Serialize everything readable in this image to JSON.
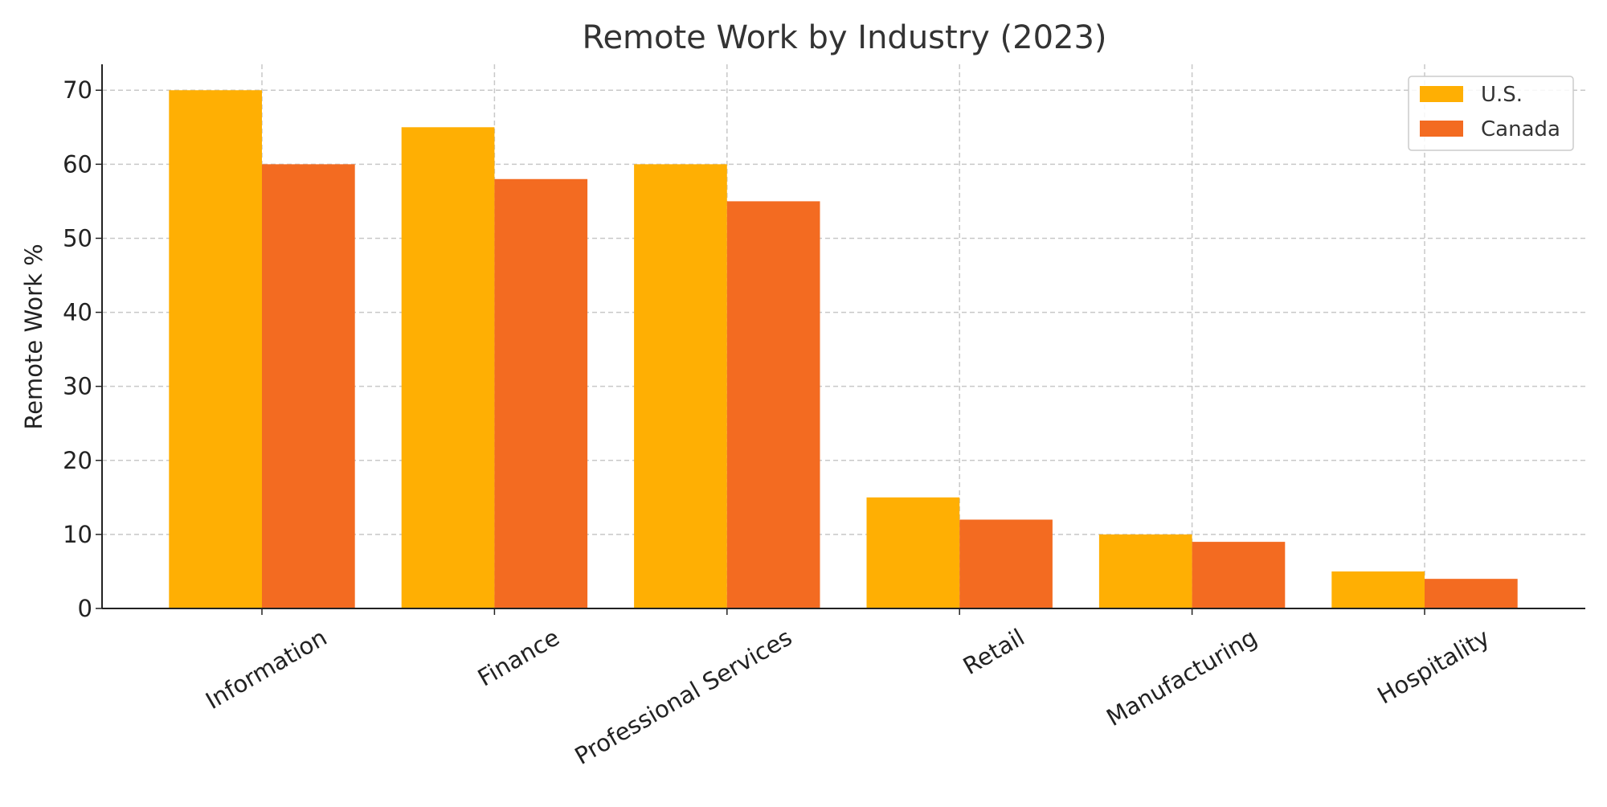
{
  "chart_data": {
    "type": "bar",
    "title": "Remote Work by Industry (2023)",
    "xlabel": "",
    "ylabel": "Remote Work %",
    "categories": [
      "Information",
      "Finance",
      "Professional Services",
      "Retail",
      "Manufacturing",
      "Hospitality"
    ],
    "series": [
      {
        "name": "U.S.",
        "color": "#FFAF03",
        "values": [
          70,
          65,
          60,
          15,
          10,
          5
        ]
      },
      {
        "name": "Canada",
        "color": "#F36B21",
        "values": [
          60,
          58,
          55,
          12,
          9,
          4
        ]
      }
    ],
    "ylim": [
      0,
      73.5
    ],
    "yticks": [
      0,
      10,
      20,
      30,
      40,
      50,
      60,
      70
    ],
    "grid": true,
    "legend_position": "top-right",
    "xtick_rotation": 30
  }
}
